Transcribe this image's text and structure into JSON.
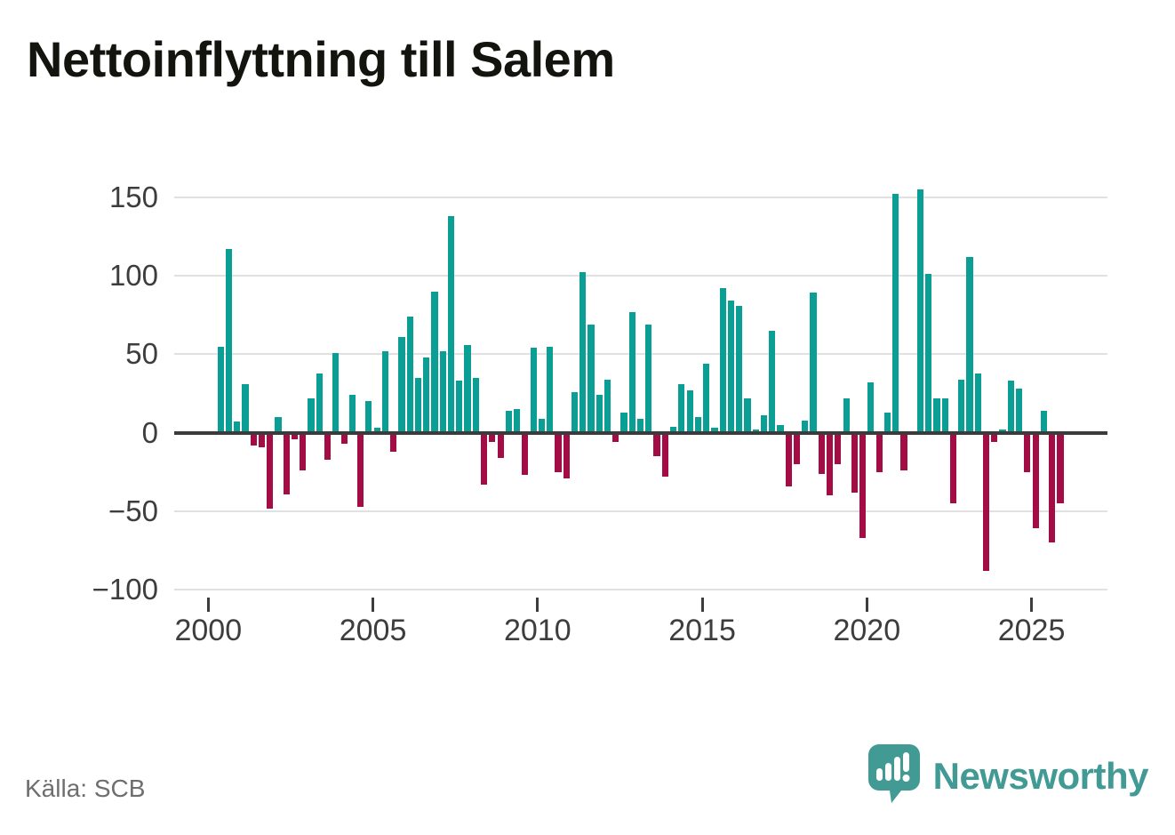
{
  "page_title": "Nettoinflyttning till Salem",
  "source_label": "Källa: SCB",
  "logo": {
    "text": "Newsworthy",
    "icon": "speech-bubble-bar-chart",
    "color": "#429a95"
  },
  "colors": {
    "positive_bar": "#0a9e95",
    "negative_bar": "#a40c45",
    "zero_axis": "#3b3b3b",
    "gridline": "#e1e1e1",
    "axis_text": "#3d3d3d"
  },
  "chart_data": {
    "type": "bar",
    "title": "Nettoinflyttning till Salem",
    "xlabel": "",
    "ylabel": "",
    "ylim": [
      -100,
      155
    ],
    "grid": true,
    "legend": "none",
    "y_ticks": [
      {
        "value": 150,
        "label": "150"
      },
      {
        "value": 100,
        "label": "100"
      },
      {
        "value": 50,
        "label": "50"
      },
      {
        "value": 0,
        "label": "0"
      },
      {
        "value": -50,
        "label": "−50"
      },
      {
        "value": -100,
        "label": "−100"
      }
    ],
    "x_ticks": [
      {
        "year": 2000,
        "label": "2000"
      },
      {
        "year": 2005,
        "label": "2005"
      },
      {
        "year": 2010,
        "label": "2010"
      },
      {
        "year": 2015,
        "label": "2015"
      },
      {
        "year": 2020,
        "label": "2020"
      },
      {
        "year": 2025,
        "label": "2025"
      }
    ],
    "categories": [
      "2000 Q2",
      "2000 Q3",
      "2000 Q4",
      "2001 Q1",
      "2001 Q2",
      "2001 Q3",
      "2001 Q4",
      "2002 Q1",
      "2002 Q2",
      "2002 Q3",
      "2002 Q4",
      "2003 Q1",
      "2003 Q2",
      "2003 Q3",
      "2003 Q4",
      "2004 Q1",
      "2004 Q2",
      "2004 Q3",
      "2004 Q4",
      "2005 Q1",
      "2005 Q2",
      "2005 Q3",
      "2005 Q4",
      "2006 Q1",
      "2006 Q2",
      "2006 Q3",
      "2006 Q4",
      "2007 Q1",
      "2007 Q2",
      "2007 Q3",
      "2007 Q4",
      "2008 Q1",
      "2008 Q2",
      "2008 Q3",
      "2008 Q4",
      "2009 Q1",
      "2009 Q2",
      "2009 Q3",
      "2009 Q4",
      "2010 Q1",
      "2010 Q2",
      "2010 Q3",
      "2010 Q4",
      "2011 Q1",
      "2011 Q2",
      "2011 Q3",
      "2011 Q4",
      "2012 Q1",
      "2012 Q2",
      "2012 Q3",
      "2012 Q4",
      "2013 Q1",
      "2013 Q2",
      "2013 Q3",
      "2013 Q4",
      "2014 Q1",
      "2014 Q2",
      "2014 Q3",
      "2014 Q4",
      "2015 Q1",
      "2015 Q2",
      "2015 Q3",
      "2015 Q4",
      "2016 Q1",
      "2016 Q2",
      "2016 Q3",
      "2016 Q4",
      "2017 Q1",
      "2017 Q2",
      "2017 Q3",
      "2017 Q4",
      "2018 Q1",
      "2018 Q2",
      "2018 Q3",
      "2018 Q4",
      "2019 Q1",
      "2019 Q2",
      "2019 Q3",
      "2019 Q4",
      "2020 Q1",
      "2020 Q2",
      "2020 Q3",
      "2020 Q4",
      "2021 Q1",
      "2021 Q2",
      "2021 Q3",
      "2021 Q4",
      "2022 Q1",
      "2022 Q2",
      "2022 Q3",
      "2022 Q4",
      "2023 Q1",
      "2023 Q2",
      "2023 Q3",
      "2023 Q4",
      "2024 Q1",
      "2024 Q2",
      "2024 Q3",
      "2024 Q4",
      "2025 Q1",
      "2025 Q2",
      "2025 Q3",
      "2025 Q4"
    ],
    "values": [
      55,
      117,
      7,
      31,
      -8,
      -9,
      -48,
      10,
      -39,
      -4,
      -24,
      22,
      38,
      -17,
      51,
      -7,
      24,
      -47,
      20,
      3,
      52,
      -12,
      61,
      74,
      35,
      48,
      90,
      52,
      138,
      33,
      56,
      35,
      -33,
      -6,
      -16,
      14,
      15,
      -27,
      54,
      9,
      55,
      -25,
      -29,
      26,
      102,
      69,
      24,
      34,
      -6,
      13,
      77,
      9,
      69,
      -15,
      -28,
      4,
      31,
      27,
      10,
      44,
      3,
      92,
      84,
      81,
      22,
      2,
      11,
      65,
      5,
      -34,
      -20,
      8,
      89,
      -26,
      -40,
      -20,
      22,
      -38,
      -67,
      32,
      -25,
      13,
      152,
      -24,
      0,
      155,
      101,
      22,
      22,
      -45,
      34,
      112,
      38,
      -88,
      -6,
      2,
      33,
      28,
      -25,
      -61,
      14,
      -70,
      -45
    ]
  }
}
